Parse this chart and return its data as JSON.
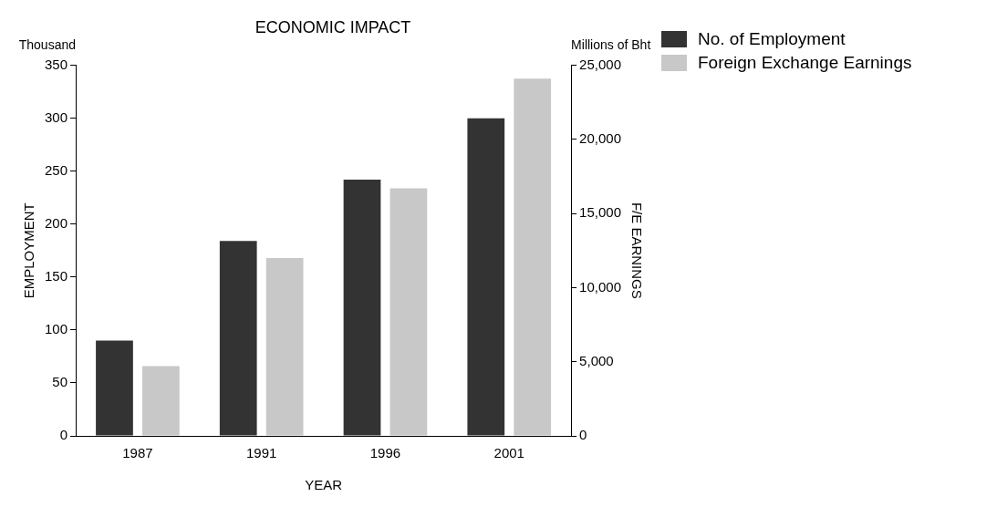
{
  "chart_data": {
    "type": "bar",
    "title": "ECONOMIC IMPACT",
    "xlabel": "YEAR",
    "ylabel": "EMPLOYMENT",
    "y2label": "F/E EARNINGS",
    "annotations": [
      "Thousand",
      "Millions of Bht"
    ],
    "categories": [
      "1987",
      "1991",
      "1996",
      "2001"
    ],
    "series": [
      {
        "name": "No. of Employment",
        "color": "#333333",
        "values": [
          90,
          184,
          242,
          300
        ]
      },
      {
        "name": "Foreign Exchange Earnings",
        "color": "#c8c8c8",
        "axis": "y2",
        "values": [
          4700,
          12000,
          16700,
          24100
        ]
      }
    ],
    "ylim": [
      0,
      350
    ],
    "yticks": [
      0,
      50,
      100,
      150,
      200,
      250,
      300,
      350
    ],
    "y2lim": [
      0,
      25000
    ],
    "y2ticks": [
      {
        "value": 0,
        "label": "0"
      },
      {
        "value": 5000,
        "label": "5,000"
      },
      {
        "value": 10000,
        "label": "10,000"
      },
      {
        "value": 15000,
        "label": "15,000"
      },
      {
        "value": 20000,
        "label": "20,000"
      },
      {
        "value": 25000,
        "label": "25,000"
      }
    ],
    "grid": false,
    "legend": "top right"
  }
}
